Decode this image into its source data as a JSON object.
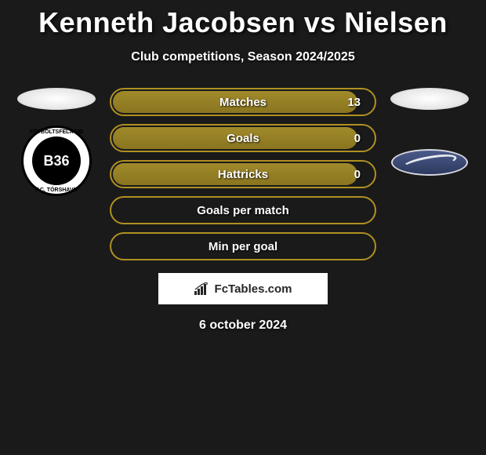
{
  "header": {
    "title": "Kenneth Jacobsen vs Nielsen",
    "subtitle": "Club competitions, Season 2024/2025"
  },
  "left_club": {
    "badge_center": "B36",
    "ring_text_top": "FÓTBOLTSFELAGIÐ",
    "ring_text_bottom": "F.C. TÓRSHAVN"
  },
  "right_club": {
    "name": "right-club"
  },
  "stats": [
    {
      "label": "Matches",
      "value": "13",
      "has_value": true,
      "fill_pct": 94,
      "border_color": "#b09020",
      "fill_color": "#a08a2a",
      "fill_color_dark": "#8a7520"
    },
    {
      "label": "Goals",
      "value": "0",
      "has_value": true,
      "fill_pct": 94,
      "border_color": "#b09020",
      "fill_color": "#a08a2a",
      "fill_color_dark": "#8a7520"
    },
    {
      "label": "Hattricks",
      "value": "0",
      "has_value": true,
      "fill_pct": 94,
      "border_color": "#b09020",
      "fill_color": "#a08a2a",
      "fill_color_dark": "#8a7520"
    },
    {
      "label": "Goals per match",
      "value": "",
      "has_value": false,
      "fill_pct": 0,
      "border_color": "#b09020",
      "fill_color": "#a08a2a",
      "fill_color_dark": "#8a7520"
    },
    {
      "label": "Min per goal",
      "value": "",
      "has_value": false,
      "fill_pct": 0,
      "border_color": "#b09020",
      "fill_color": "#a08a2a",
      "fill_color_dark": "#8a7520"
    }
  ],
  "watermark": {
    "text": "FcTables.com"
  },
  "footer": {
    "date": "6 october 2024"
  },
  "styling": {
    "background_color": "#1a1a1a",
    "title_fontsize": 36,
    "subtitle_fontsize": 16,
    "stat_label_fontsize": 15,
    "stat_label_color": "#ffffff",
    "pill_height": 36,
    "pill_border_radius": 18,
    "pill_border_width": 2,
    "oval_color": "#e8e8e8"
  }
}
